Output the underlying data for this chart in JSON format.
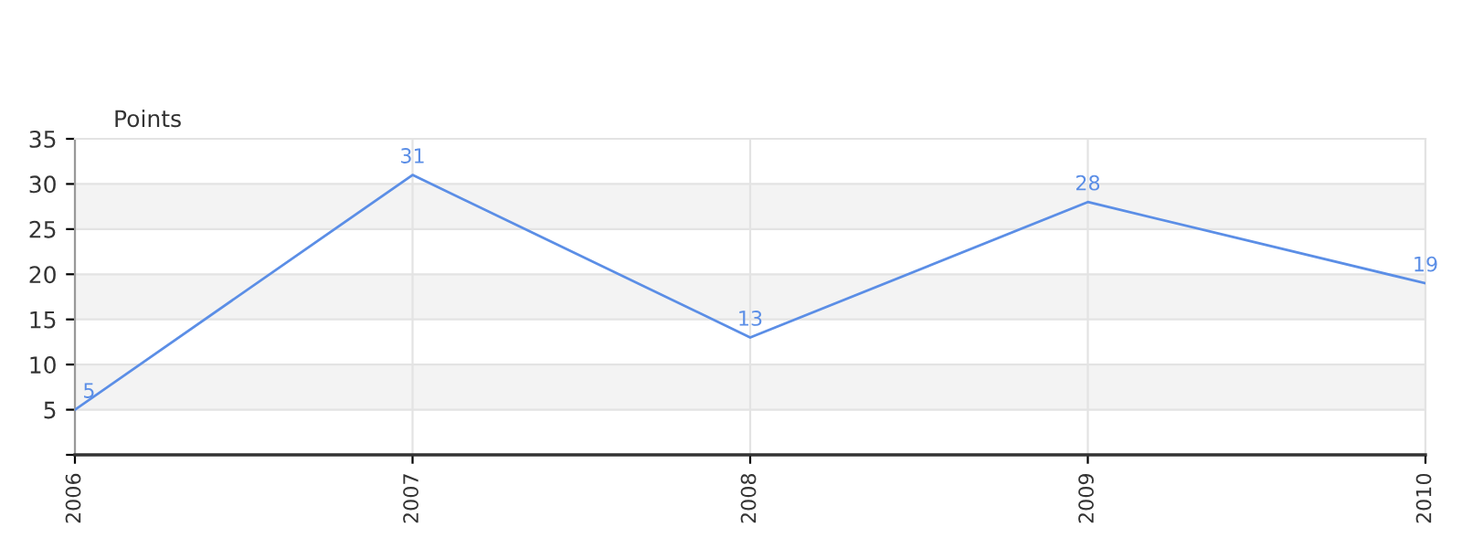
{
  "chart_data": {
    "type": "line",
    "ylabel": "Points",
    "categories": [
      "2006",
      "2007",
      "2008",
      "2009",
      "2010"
    ],
    "series": [
      {
        "color": "#5b8ee6",
        "values": [
          5,
          31,
          13,
          28,
          19
        ]
      }
    ],
    "ylim": [
      0,
      35
    ],
    "yticks": [
      {
        "value": 0,
        "label": null
      },
      5,
      10,
      15,
      20,
      25,
      30,
      35
    ],
    "bands": [
      {
        "axis": "y",
        "from": 5,
        "to": 10,
        "color": "#f3f3f3"
      },
      {
        "axis": "y",
        "from": 15,
        "to": 20,
        "color": "#f3f3f3"
      },
      {
        "axis": "y",
        "from": 25,
        "to": 30,
        "color": "#f3f3f3"
      }
    ],
    "grid": true,
    "data_labels": true,
    "marker": "none",
    "line_style": "solid"
  }
}
